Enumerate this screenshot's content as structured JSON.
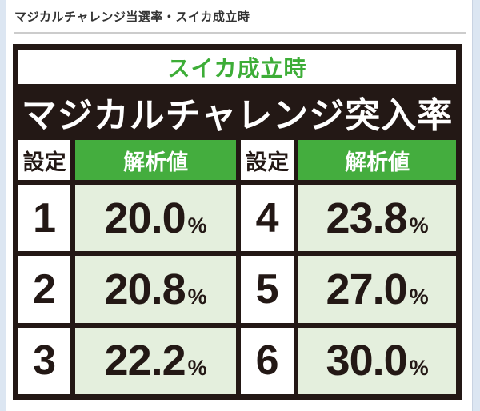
{
  "page": {
    "title": "マジカルチャレンジ当選率・スイカ成立時"
  },
  "panel": {
    "subtitle": "スイカ成立時",
    "title": "マジカルチャレンジ突入率",
    "columns": [
      "設定",
      "解析値",
      "設定",
      "解析値"
    ],
    "percent_sign": "%",
    "rows": [
      {
        "left_setting": "1",
        "left_value": "20.0",
        "right_setting": "4",
        "right_value": "23.8"
      },
      {
        "left_setting": "2",
        "left_value": "20.8",
        "right_setting": "5",
        "right_value": "27.0"
      },
      {
        "left_setting": "3",
        "left_value": "22.2",
        "right_setting": "6",
        "right_value": "30.0"
      }
    ]
  },
  "colors": {
    "header_green": "#44ad3e",
    "subtitle_green": "#3dad37",
    "value_cell_green": "#e4efdd",
    "table_border_dark": "#231815",
    "page_background": "#dce6f2",
    "divider_gray": "#cccccc"
  },
  "chart_data": {
    "type": "table",
    "title": "マジカルチャレンジ突入率",
    "subtitle": "スイカ成立時",
    "columns": [
      "設定",
      "解析値"
    ],
    "rows": [
      [
        "1",
        "20.0%"
      ],
      [
        "2",
        "20.8%"
      ],
      [
        "3",
        "22.2%"
      ],
      [
        "4",
        "23.8%"
      ],
      [
        "5",
        "27.0%"
      ],
      [
        "6",
        "30.0%"
      ]
    ]
  }
}
